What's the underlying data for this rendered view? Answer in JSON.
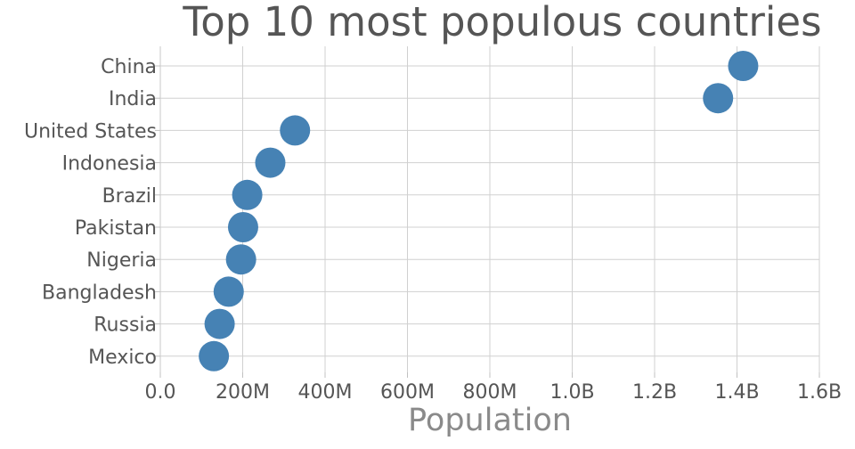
{
  "chart_data": {
    "type": "scatter",
    "title": "Top 10 most populous countries",
    "xlabel": "Population",
    "ylabel": "",
    "xlim": [
      0,
      1600000000
    ],
    "x_ticks": [
      0,
      200000000,
      400000000,
      600000000,
      800000000,
      1000000000,
      1200000000,
      1400000000,
      1600000000
    ],
    "x_tick_labels": [
      "0.0",
      "200M",
      "400M",
      "600M",
      "800M",
      "1.0B",
      "1.2B",
      "1.4B",
      "1.6B"
    ],
    "categories": [
      "China",
      "India",
      "United States",
      "Indonesia",
      "Brazil",
      "Pakistan",
      "Nigeria",
      "Bangladesh",
      "Russia",
      "Mexico"
    ],
    "values": [
      1415000000,
      1354000000,
      327000000,
      267000000,
      211000000,
      201000000,
      196000000,
      166000000,
      144000000,
      130000000
    ],
    "grid": true,
    "legend": "none",
    "marker_color": "#4682b4"
  }
}
